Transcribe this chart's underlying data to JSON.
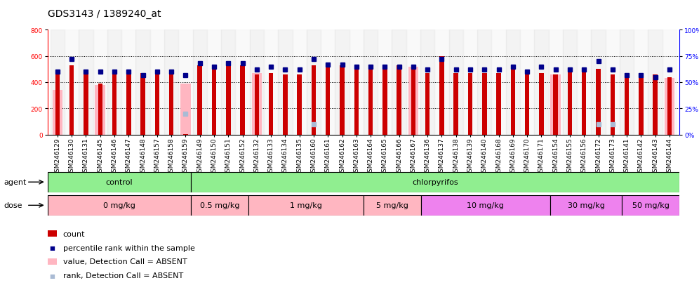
{
  "title": "GDS3143 / 1389240_at",
  "samples": [
    "GSM246129",
    "GSM246130",
    "GSM246131",
    "GSM246145",
    "GSM246146",
    "GSM246147",
    "GSM246148",
    "GSM246157",
    "GSM246158",
    "GSM246159",
    "GSM246149",
    "GSM246150",
    "GSM246151",
    "GSM246152",
    "GSM246132",
    "GSM246133",
    "GSM246134",
    "GSM246135",
    "GSM246160",
    "GSM246161",
    "GSM246162",
    "GSM246163",
    "GSM246164",
    "GSM246165",
    "GSM246166",
    "GSM246167",
    "GSM246136",
    "GSM246137",
    "GSM246138",
    "GSM246139",
    "GSM246140",
    "GSM246168",
    "GSM246169",
    "GSM246170",
    "GSM246171",
    "GSM246154",
    "GSM246155",
    "GSM246156",
    "GSM246172",
    "GSM246173",
    "GSM246141",
    "GSM246142",
    "GSM246143",
    "GSM246144"
  ],
  "count_values": [
    470,
    530,
    470,
    390,
    480,
    480,
    470,
    460,
    480,
    3,
    530,
    530,
    530,
    530,
    460,
    470,
    460,
    460,
    530,
    540,
    530,
    530,
    530,
    530,
    530,
    530,
    470,
    600,
    470,
    470,
    470,
    470,
    500,
    460,
    470,
    460,
    500,
    500,
    500,
    460,
    470,
    460,
    460,
    440
  ],
  "rank_values": [
    60,
    72,
    60,
    60,
    60,
    60,
    57,
    60,
    60,
    57,
    68,
    65,
    68,
    68,
    62,
    65,
    62,
    62,
    72,
    67,
    67,
    65,
    65,
    65,
    65,
    65,
    62,
    72,
    62,
    62,
    62,
    62,
    65,
    60,
    65,
    62,
    62,
    62,
    70,
    62,
    57,
    57,
    55,
    62
  ],
  "absent_count_values": [
    340,
    null,
    null,
    380,
    null,
    null,
    null,
    null,
    null,
    390,
    null,
    null,
    null,
    null,
    470,
    null,
    null,
    null,
    null,
    null,
    null,
    null,
    null,
    null,
    null,
    520,
    null,
    null,
    null,
    null,
    null,
    null,
    null,
    null,
    null,
    460,
    null,
    null,
    null,
    null,
    null,
    null,
    null,
    430
  ],
  "absent_rank_values": [
    null,
    null,
    null,
    null,
    null,
    null,
    null,
    null,
    null,
    20,
    null,
    null,
    null,
    null,
    null,
    null,
    null,
    null,
    10,
    null,
    null,
    null,
    null,
    null,
    null,
    null,
    null,
    null,
    null,
    null,
    null,
    null,
    null,
    null,
    null,
    null,
    null,
    null,
    10,
    10,
    null,
    null,
    null,
    null
  ],
  "ylim_left": [
    0,
    800
  ],
  "ylim_right": [
    0,
    100
  ],
  "left_yticks": [
    0,
    200,
    400,
    600,
    800
  ],
  "right_yticks": [
    0,
    25,
    50,
    75,
    100
  ],
  "bar_color": "#CC0000",
  "absent_bar_color": "#FFB6C1",
  "rank_color": "#00008B",
  "absent_rank_color": "#AABBD4",
  "title_fontsize": 10,
  "tick_fontsize": 6.5,
  "legend_fontsize": 8,
  "row_label_fontsize": 8
}
